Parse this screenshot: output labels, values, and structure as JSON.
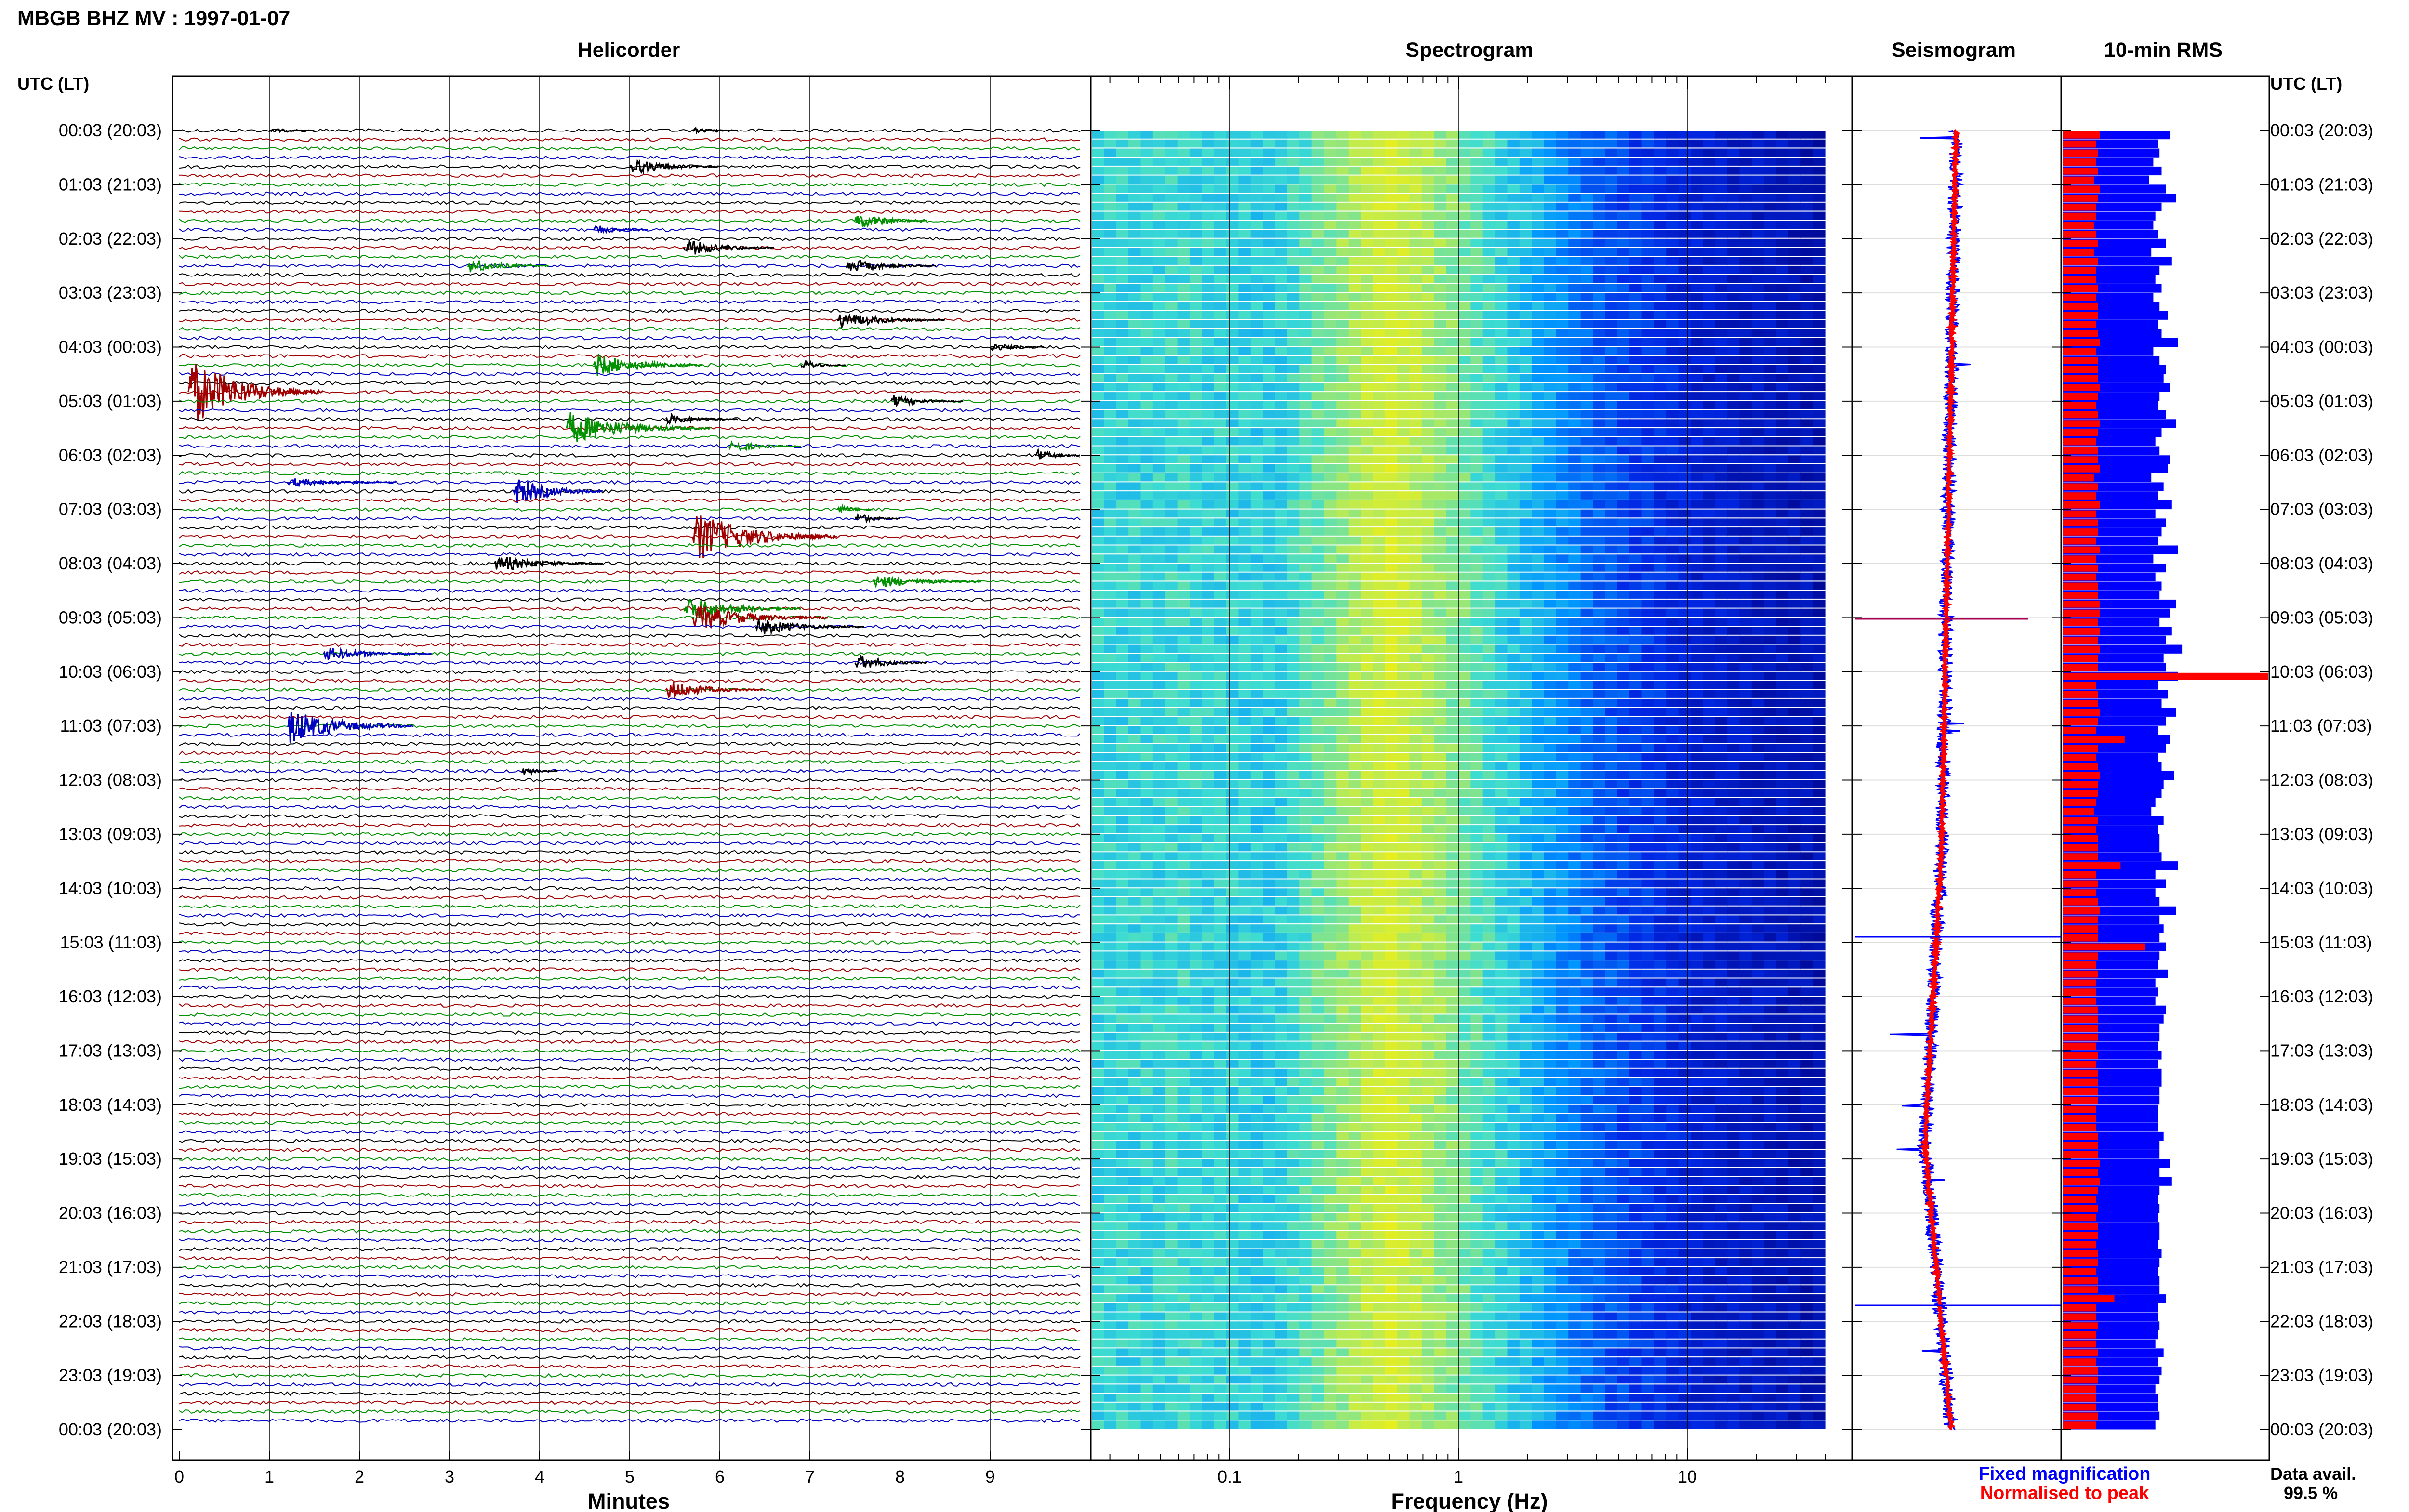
{
  "header": {
    "title": "MBGB BHZ MV : 1997-01-07"
  },
  "time_axis": {
    "left_label": "UTC (LT)",
    "right_label": "UTC (LT)",
    "rows": [
      "00:03 (20:03)",
      "01:03 (21:03)",
      "02:03 (22:03)",
      "03:03 (23:03)",
      "04:03 (00:03)",
      "05:03 (01:03)",
      "06:03 (02:03)",
      "07:03 (03:03)",
      "08:03 (04:03)",
      "09:03 (05:03)",
      "10:03 (06:03)",
      "11:03 (07:03)",
      "12:03 (08:03)",
      "13:03 (09:03)",
      "14:03 (10:03)",
      "15:03 (11:03)",
      "16:03 (12:03)",
      "17:03 (13:03)",
      "18:03 (14:03)",
      "19:03 (15:03)",
      "20:03 (16:03)",
      "21:03 (17:03)",
      "22:03 (18:03)",
      "23:03 (19:03)",
      "00:03 (20:03)"
    ]
  },
  "panels": {
    "helicorder": {
      "title": "Helicorder",
      "xlabel": "Minutes",
      "ticks": [
        "0",
        "1",
        "2",
        "3",
        "4",
        "5",
        "6",
        "7",
        "8",
        "9"
      ]
    },
    "spectrogram": {
      "title": "Spectrogram",
      "xlabel": "Frequency (Hz)",
      "ticks": [
        "0.1",
        "1",
        "10"
      ]
    },
    "seismogram": {
      "title": "Seismogram"
    },
    "rms": {
      "title": "10-min RMS"
    }
  },
  "legend": {
    "fixed_label": "Fixed magnification",
    "normalised_label": "Normalised to peak",
    "fixed_color": "#0000ff",
    "normalised_color": "#ff0000"
  },
  "availability": {
    "label": "Data avail.",
    "value": "99.5 %"
  },
  "colors": {
    "black": "#000000",
    "red": "#a00000",
    "green": "#009000",
    "blue": "#0000c0"
  },
  "chart_data": {
    "type": "helicorder",
    "traces_per_hour": 6,
    "trace_colors": [
      "black",
      "red",
      "green",
      "blue"
    ],
    "helicorder_events": [
      {
        "trace": 0,
        "minute": 1.0,
        "amp": 0.4,
        "dur": 0.5,
        "color": "black"
      },
      {
        "trace": 0,
        "minute": 5.7,
        "amp": 0.4,
        "dur": 0.5,
        "color": "black"
      },
      {
        "trace": 4,
        "minute": 5.0,
        "amp": 1.1,
        "dur": 1.0,
        "color": "black"
      },
      {
        "trace": 10,
        "minute": 7.5,
        "amp": 1.2,
        "dur": 0.8,
        "color": "green"
      },
      {
        "trace": 11,
        "minute": 4.6,
        "amp": 0.7,
        "dur": 0.6,
        "color": "blue"
      },
      {
        "trace": 13,
        "minute": 5.6,
        "amp": 1.2,
        "dur": 1.0,
        "color": "black"
      },
      {
        "trace": 15,
        "minute": 3.2,
        "amp": 1.0,
        "dur": 0.9,
        "color": "green"
      },
      {
        "trace": 15,
        "minute": 7.4,
        "amp": 1.0,
        "dur": 1.0,
        "color": "black"
      },
      {
        "trace": 21,
        "minute": 7.3,
        "amp": 1.2,
        "dur": 1.2,
        "color": "black"
      },
      {
        "trace": 24,
        "minute": 9.0,
        "amp": 0.6,
        "dur": 0.6,
        "color": "black"
      },
      {
        "trace": 26,
        "minute": 4.6,
        "amp": 1.6,
        "dur": 1.2,
        "color": "green"
      },
      {
        "trace": 26,
        "minute": 6.9,
        "amp": 0.8,
        "dur": 0.5,
        "color": "black"
      },
      {
        "trace": 29,
        "minute": 0.1,
        "amp": 4.5,
        "dur": 1.5,
        "color": "red"
      },
      {
        "trace": 30,
        "minute": 7.9,
        "amp": 0.8,
        "dur": 0.8,
        "color": "black"
      },
      {
        "trace": 32,
        "minute": 5.4,
        "amp": 0.8,
        "dur": 0.8,
        "color": "black"
      },
      {
        "trace": 33,
        "minute": 4.3,
        "amp": 2.2,
        "dur": 1.6,
        "color": "green"
      },
      {
        "trace": 35,
        "minute": 6.1,
        "amp": 0.8,
        "dur": 0.8,
        "color": "green"
      },
      {
        "trace": 36,
        "minute": 9.5,
        "amp": 0.9,
        "dur": 0.5,
        "color": "black"
      },
      {
        "trace": 39,
        "minute": 1.2,
        "amp": 0.6,
        "dur": 1.2,
        "color": "blue"
      },
      {
        "trace": 40,
        "minute": 3.7,
        "amp": 2.0,
        "dur": 1.0,
        "color": "blue"
      },
      {
        "trace": 42,
        "minute": 7.3,
        "amp": 0.7,
        "dur": 0.4,
        "color": "green"
      },
      {
        "trace": 43,
        "minute": 7.5,
        "amp": 0.8,
        "dur": 0.5,
        "color": "black"
      },
      {
        "trace": 45,
        "minute": 5.7,
        "amp": 3.4,
        "dur": 1.6,
        "color": "red"
      },
      {
        "trace": 48,
        "minute": 3.5,
        "amp": 1.2,
        "dur": 1.2,
        "color": "black"
      },
      {
        "trace": 50,
        "minute": 7.7,
        "amp": 1.0,
        "dur": 1.2,
        "color": "green"
      },
      {
        "trace": 53,
        "minute": 5.6,
        "amp": 1.8,
        "dur": 1.3,
        "color": "green"
      },
      {
        "trace": 54,
        "minute": 5.7,
        "amp": 1.8,
        "dur": 1.5,
        "color": "red"
      },
      {
        "trace": 55,
        "minute": 6.4,
        "amp": 1.2,
        "dur": 1.2,
        "color": "black"
      },
      {
        "trace": 58,
        "minute": 1.6,
        "amp": 0.9,
        "dur": 1.2,
        "color": "blue"
      },
      {
        "trace": 59,
        "minute": 7.5,
        "amp": 1.2,
        "dur": 0.8,
        "color": "black"
      },
      {
        "trace": 62,
        "minute": 5.4,
        "amp": 1.3,
        "dur": 1.1,
        "color": "red"
      },
      {
        "trace": 66,
        "minute": 1.2,
        "amp": 2.4,
        "dur": 1.4,
        "color": "blue"
      },
      {
        "trace": 71,
        "minute": 3.8,
        "amp": 0.6,
        "dur": 0.4,
        "color": "black"
      }
    ],
    "spectrogram": {
      "f_min": 0.025,
      "f_max": 40,
      "log_x": true
    },
    "rms": {
      "fixed_magnification": [
        0.52,
        0.46,
        0.47,
        0.44,
        0.48,
        0.42,
        0.5,
        0.55,
        0.48,
        0.45,
        0.44,
        0.46,
        0.5,
        0.43,
        0.53,
        0.47,
        0.45,
        0.48,
        0.44,
        0.47,
        0.51,
        0.46,
        0.48,
        0.56,
        0.44,
        0.47,
        0.5,
        0.49,
        0.52,
        0.47,
        0.46,
        0.5,
        0.55,
        0.48,
        0.45,
        0.47,
        0.52,
        0.51,
        0.43,
        0.49,
        0.46,
        0.53,
        0.45,
        0.5,
        0.48,
        0.46,
        0.56,
        0.44,
        0.5,
        0.45,
        0.48,
        0.47,
        0.55,
        0.52,
        0.47,
        0.53,
        0.5,
        0.58,
        0.49,
        0.5,
        0.56,
        0.46,
        0.51,
        0.48,
        0.55,
        0.5,
        0.46,
        0.52,
        0.5,
        0.46,
        0.48,
        0.54,
        0.49,
        0.48,
        0.45,
        0.43,
        0.49,
        0.46,
        0.47,
        0.47,
        0.48,
        0.56,
        0.45,
        0.5,
        0.45,
        0.47,
        0.55,
        0.47,
        0.49,
        0.47,
        0.5,
        0.47,
        0.46,
        0.51,
        0.45,
        0.46,
        0.45,
        0.5,
        0.49,
        0.47,
        0.47,
        0.46,
        0.48,
        0.46,
        0.48,
        0.48,
        0.47,
        0.47,
        0.46,
        0.46,
        0.46,
        0.49,
        0.47,
        0.47,
        0.52,
        0.47,
        0.53,
        0.47,
        0.46,
        0.47,
        0.46,
        0.47,
        0.47,
        0.46,
        0.48,
        0.47,
        0.46,
        0.47,
        0.47,
        0.5,
        0.46,
        0.46,
        0.47,
        0.46,
        0.45,
        0.49,
        0.46,
        0.48,
        0.47,
        0.45,
        0.46,
        0.46,
        0.47,
        0.45
      ],
      "normalised_to_peak": [
        0.18,
        0.16,
        0.17,
        0.16,
        0.17,
        0.15,
        0.18,
        0.17,
        0.16,
        0.16,
        0.15,
        0.16,
        0.17,
        0.15,
        0.17,
        0.16,
        0.16,
        0.17,
        0.16,
        0.17,
        0.17,
        0.16,
        0.17,
        0.18,
        0.16,
        0.17,
        0.17,
        0.17,
        0.18,
        0.17,
        0.16,
        0.17,
        0.18,
        0.17,
        0.16,
        0.17,
        0.17,
        0.18,
        0.15,
        0.17,
        0.16,
        0.18,
        0.16,
        0.17,
        0.17,
        0.16,
        0.18,
        0.16,
        0.17,
        0.16,
        0.17,
        0.17,
        0.18,
        0.18,
        0.17,
        0.18,
        0.17,
        0.18,
        0.17,
        0.17,
        1.0,
        0.16,
        0.17,
        0.17,
        0.18,
        0.17,
        0.16,
        0.3,
        0.17,
        0.16,
        0.17,
        0.18,
        0.17,
        0.17,
        0.16,
        0.15,
        0.17,
        0.16,
        0.17,
        0.17,
        0.17,
        0.28,
        0.16,
        0.17,
        0.16,
        0.17,
        0.18,
        0.17,
        0.17,
        0.17,
        0.4,
        0.17,
        0.16,
        0.17,
        0.16,
        0.16,
        0.16,
        0.17,
        0.17,
        0.17,
        0.17,
        0.16,
        0.17,
        0.16,
        0.17,
        0.17,
        0.17,
        0.17,
        0.16,
        0.16,
        0.16,
        0.17,
        0.17,
        0.17,
        0.18,
        0.17,
        0.18,
        0.17,
        0.16,
        0.17,
        0.16,
        0.17,
        0.17,
        0.16,
        0.17,
        0.17,
        0.16,
        0.17,
        0.17,
        0.25,
        0.16,
        0.16,
        0.17,
        0.16,
        0.16,
        0.17,
        0.16,
        0.17,
        0.17,
        0.16,
        0.16,
        0.16,
        0.17,
        0.16
      ]
    }
  }
}
